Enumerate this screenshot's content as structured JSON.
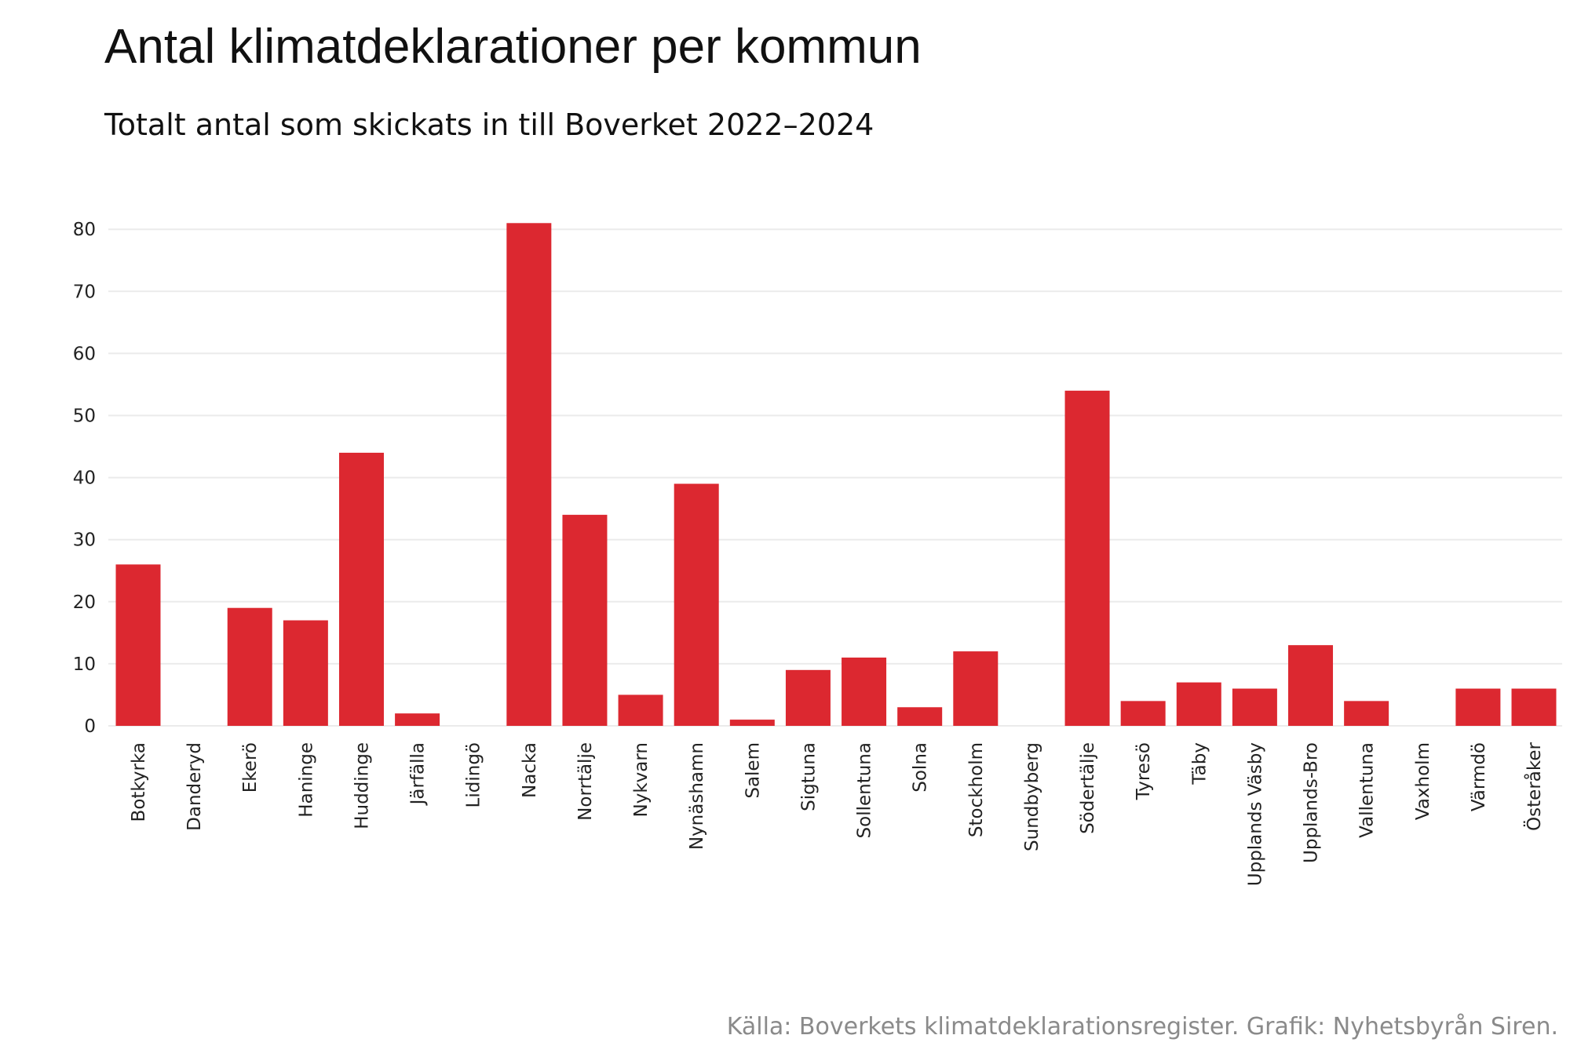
{
  "chart_data": {
    "type": "bar",
    "title": "Antal klimatdeklarationer per kommun",
    "subtitle": "Totalt antal som skickats in till Boverket 2022–2024",
    "caption": "Källa: Boverkets klimatdeklarationsregister. Grafik: Nyhetsbyrån Siren.",
    "xlabel": "",
    "ylabel": "",
    "ylim": [
      0,
      82
    ],
    "yticks": [
      0,
      10,
      20,
      30,
      40,
      50,
      60,
      70,
      80
    ],
    "grid": true,
    "legend": "none",
    "bar_color": "#dc2830",
    "categories": [
      "Botkyrka",
      "Danderyd",
      "Ekerö",
      "Haninge",
      "Huddinge",
      "Järfälla",
      "Lidingö",
      "Nacka",
      "Norrtälje",
      "Nykvarn",
      "Nynäshamn",
      "Salem",
      "Sigtuna",
      "Sollentuna",
      "Solna",
      "Stockholm",
      "Sundbyberg",
      "Södertälje",
      "Tyresö",
      "Täby",
      "Upplands Väsby",
      "Upplands-Bro",
      "Vallentuna",
      "Vaxholm",
      "Värmdö",
      "Österåker"
    ],
    "values": [
      26,
      0,
      19,
      17,
      44,
      2,
      0,
      81,
      34,
      5,
      39,
      1,
      9,
      11,
      3,
      12,
      0,
      54,
      4,
      7,
      6,
      13,
      4,
      0,
      6,
      6
    ]
  }
}
